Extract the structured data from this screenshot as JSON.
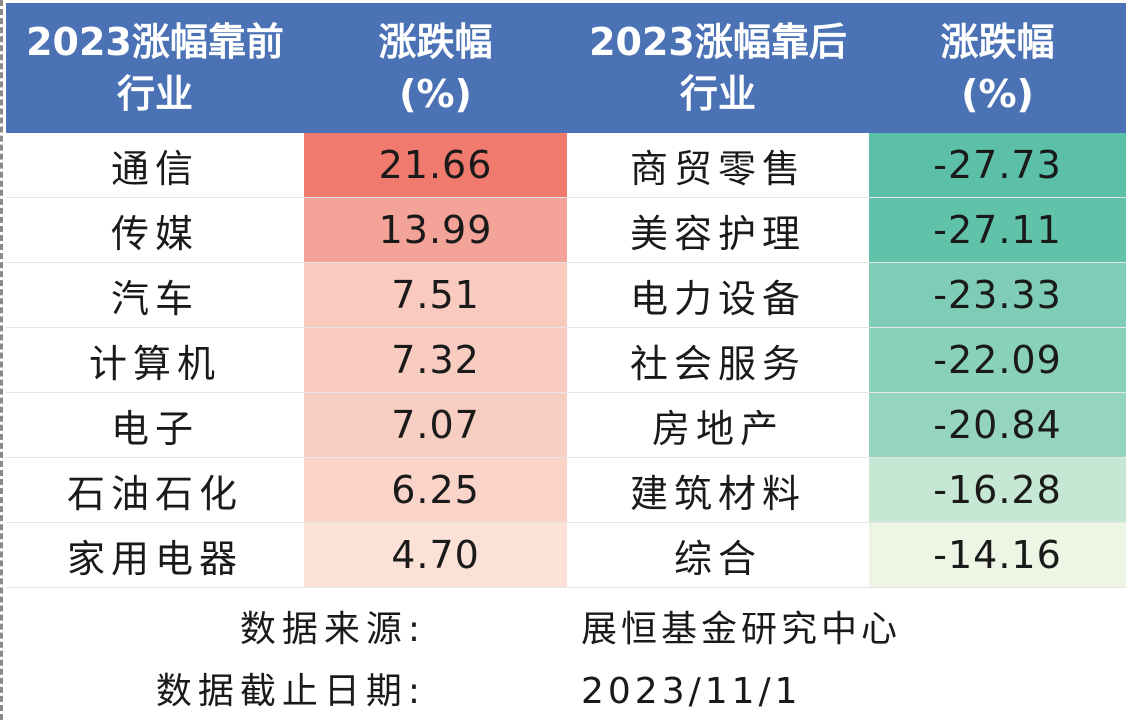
{
  "headers": {
    "top_industry": [
      "2023涨幅靠前",
      "行业"
    ],
    "top_change": [
      "涨跌幅",
      "(%)"
    ],
    "bottom_industry": [
      "2023涨幅靠后",
      "行业"
    ],
    "bottom_change": [
      "涨跌幅",
      "(%)"
    ]
  },
  "chart_data": {
    "type": "table",
    "columns": [
      "2023涨幅靠前行业",
      "涨跌幅(%)",
      "2023涨幅靠后行业",
      "涨跌幅(%)"
    ],
    "rows": [
      {
        "top_name": "通信",
        "top_value": "21.66",
        "bottom_name": "商贸零售",
        "bottom_value": "-27.73"
      },
      {
        "top_name": "传媒",
        "top_value": "13.99",
        "bottom_name": "美容护理",
        "bottom_value": "-27.11"
      },
      {
        "top_name": "汽车",
        "top_value": "7.51",
        "bottom_name": "电力设备",
        "bottom_value": "-23.33"
      },
      {
        "top_name": "计算机",
        "top_value": "7.32",
        "bottom_name": "社会服务",
        "bottom_value": "-22.09"
      },
      {
        "top_name": "电子",
        "top_value": "7.07",
        "bottom_name": "房地产",
        "bottom_value": "-20.84"
      },
      {
        "top_name": "石油石化",
        "top_value": "6.25",
        "bottom_name": "建筑材料",
        "bottom_value": "-16.28"
      },
      {
        "top_name": "家用电器",
        "top_value": "4.70",
        "bottom_name": "综合",
        "bottom_value": "-14.16"
      }
    ]
  },
  "footer": {
    "source_label": "数据来源:",
    "source_value": "展恒基金研究中心",
    "date_label": "数据截止日期:",
    "date_value": "2023/11/1"
  },
  "colors": {
    "header_bg": "#4a72b5",
    "positive_max": "#f07a6e",
    "positive_min": "#fbe1d6",
    "negative_max": "#5cc0a8",
    "negative_min": "#edf5e4"
  }
}
